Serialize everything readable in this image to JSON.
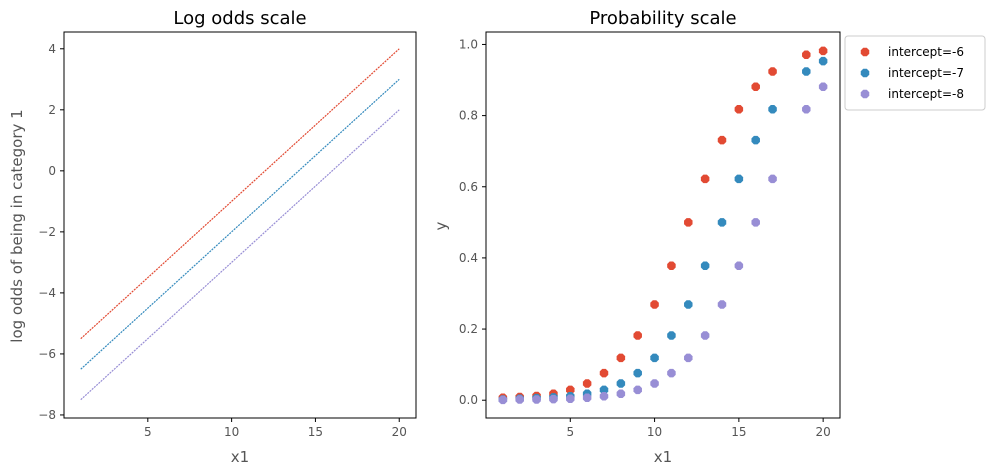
{
  "chart_data": [
    {
      "type": "line",
      "title": "Log odds scale",
      "xlabel": "x1",
      "ylabel": "log odds of being in category 1",
      "xlim": [
        0,
        21
      ],
      "ylim": [
        -8.1,
        4.55
      ],
      "xticks": [
        5,
        10,
        15,
        20
      ],
      "yticks": [
        -8,
        -6,
        -4,
        -2,
        0,
        2,
        4
      ],
      "xtick_labels": [
        "5",
        "10",
        "15",
        "20"
      ],
      "ytick_labels": [
        "−8",
        "−6",
        "−4",
        "−2",
        "0",
        "2",
        "4"
      ],
      "grid": false,
      "series": [
        {
          "color": "#E24A33",
          "x": [
            1,
            20
          ],
          "y": [
            -5.5,
            4.0
          ]
        },
        {
          "color": "#348ABD",
          "x": [
            1,
            20
          ],
          "y": [
            -6.5,
            3.0
          ]
        },
        {
          "color": "#988ED5",
          "x": [
            1,
            20
          ],
          "y": [
            -7.5,
            2.0
          ]
        }
      ]
    },
    {
      "type": "scatter",
      "title": "Probability scale",
      "xlabel": "x1",
      "ylabel": "y",
      "xlim": [
        0,
        21
      ],
      "ylim": [
        -0.05,
        1.035
      ],
      "xticks": [
        5,
        10,
        15,
        20
      ],
      "yticks": [
        0.0,
        0.2,
        0.4,
        0.6,
        0.8,
        1.0
      ],
      "xtick_labels": [
        "5",
        "10",
        "15",
        "20"
      ],
      "ytick_labels": [
        "0.0",
        "0.2",
        "0.4",
        "0.6",
        "0.8",
        "1.0"
      ],
      "grid": false,
      "legend_position": "outside upper-right",
      "series": [
        {
          "name": "intercept=-6",
          "color": "#E24A33",
          "x": [
            1,
            2,
            3,
            4,
            5,
            6,
            7,
            8,
            9,
            10,
            11,
            12,
            13,
            14,
            15,
            16,
            17,
            19,
            20
          ],
          "y": [
            0.007,
            0.009,
            0.012,
            0.018,
            0.029,
            0.047,
            0.076,
            0.119,
            0.182,
            0.269,
            0.378,
            0.5,
            0.622,
            0.731,
            0.818,
            0.881,
            0.924,
            0.971,
            0.982
          ]
        },
        {
          "name": "intercept=-7",
          "color": "#348ABD",
          "x": [
            1,
            2,
            3,
            4,
            5,
            6,
            7,
            8,
            9,
            10,
            11,
            12,
            13,
            14,
            15,
            16,
            17,
            19,
            20
          ],
          "y": [
            0.002,
            0.004,
            0.006,
            0.008,
            0.011,
            0.018,
            0.029,
            0.047,
            0.076,
            0.119,
            0.182,
            0.269,
            0.378,
            0.5,
            0.622,
            0.731,
            0.818,
            0.924,
            0.953
          ]
        },
        {
          "name": "intercept=-8",
          "color": "#988ED5",
          "x": [
            1,
            2,
            3,
            4,
            5,
            6,
            7,
            8,
            9,
            10,
            11,
            12,
            13,
            14,
            15,
            16,
            17,
            19,
            20
          ],
          "y": [
            0.001,
            0.002,
            0.002,
            0.003,
            0.004,
            0.007,
            0.011,
            0.018,
            0.029,
            0.047,
            0.076,
            0.119,
            0.182,
            0.269,
            0.378,
            0.5,
            0.622,
            0.818,
            0.881
          ]
        }
      ]
    }
  ]
}
